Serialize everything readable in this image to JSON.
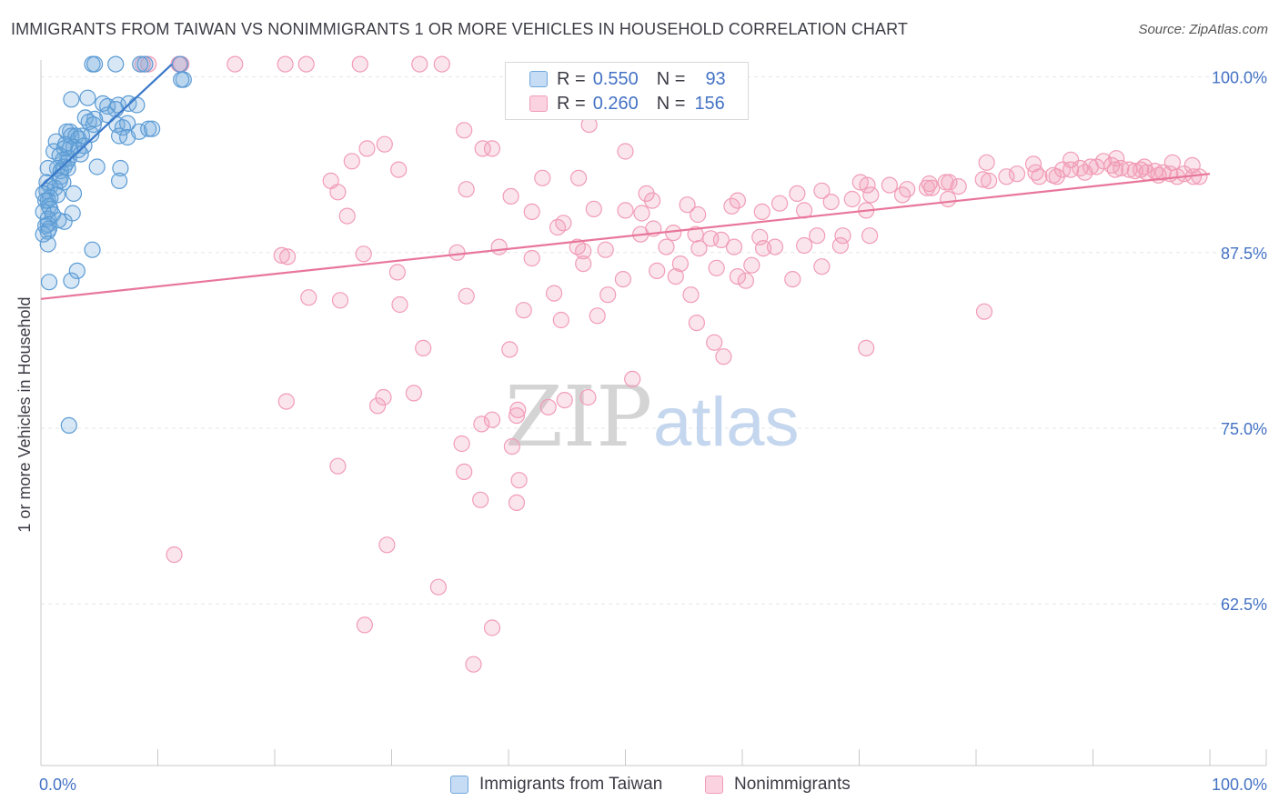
{
  "header": {
    "title": "IMMIGRANTS FROM TAIWAN VS NONIMMIGRANTS 1 OR MORE VEHICLES IN HOUSEHOLD CORRELATION CHART",
    "source": "Source: ZipAtlas.com"
  },
  "watermark": {
    "zip": "ZIP",
    "atlas": "atlas"
  },
  "legend": {
    "rows": [
      {
        "r_label": "R =",
        "r_value": "0.550",
        "n_label": "N =",
        "n_value": "93",
        "color": "#6fa8dc"
      },
      {
        "r_label": "R =",
        "r_value": "0.260",
        "n_label": "N =",
        "n_value": "156",
        "color": "#f19cb7"
      }
    ]
  },
  "bottom_legend": {
    "items": [
      {
        "label": "Immigrants from Taiwan",
        "color": "#6fa8dc"
      },
      {
        "label": "Nonimmigrants",
        "color": "#f19cb7"
      }
    ]
  },
  "chart_data": {
    "type": "scatter",
    "title": "IMMIGRANTS FROM TAIWAN VS NONIMMIGRANTS 1 OR MORE VEHICLES IN HOUSEHOLD CORRELATION CHART",
    "xlabel": "",
    "ylabel": "1 or more Vehicles in Household",
    "xlim": [
      0,
      100
    ],
    "ylim": [
      51.0,
      101.2
    ],
    "x_tick_labels": [
      "0.0%",
      "100.0%"
    ],
    "y_ticks": [
      {
        "value": 100.0,
        "label": "100.0%"
      },
      {
        "value": 87.5,
        "label": "87.5%"
      },
      {
        "value": 75.0,
        "label": "75.0%"
      },
      {
        "value": 62.5,
        "label": "62.5%"
      }
    ],
    "grid": true,
    "colors": {
      "taiwan": "#6fa8dc",
      "taiwan_line": "#3a78c9",
      "nonimm": "#f19cb7",
      "nonimm_line": "#e8769b"
    },
    "series": [
      {
        "name": "Immigrants from Taiwan",
        "R": 0.55,
        "N": 93,
        "trend": [
          [
            0.0,
            92.2
          ],
          [
            11.2,
            100.9
          ]
        ],
        "points": [
          [
            4.4,
            100.9
          ],
          [
            4.6,
            100.9
          ],
          [
            6.4,
            100.9
          ],
          [
            8.5,
            100.9
          ],
          [
            8.9,
            100.9
          ],
          [
            11.9,
            100.9
          ],
          [
            12.2,
            99.8
          ],
          [
            12.0,
            99.8
          ],
          [
            4.0,
            98.5
          ],
          [
            2.6,
            98.4
          ],
          [
            5.3,
            98.1
          ],
          [
            6.6,
            98.0
          ],
          [
            7.5,
            98.1
          ],
          [
            8.2,
            98.0
          ],
          [
            5.7,
            97.9
          ],
          [
            6.4,
            97.7
          ],
          [
            5.7,
            97.3
          ],
          [
            3.8,
            97.1
          ],
          [
            4.6,
            97.0
          ],
          [
            4.1,
            96.8
          ],
          [
            6.5,
            96.6
          ],
          [
            4.5,
            96.6
          ],
          [
            7.4,
            96.7
          ],
          [
            7.0,
            96.4
          ],
          [
            8.4,
            96.1
          ],
          [
            9.2,
            96.3
          ],
          [
            9.5,
            96.3
          ],
          [
            2.5,
            96.1
          ],
          [
            2.2,
            96.1
          ],
          [
            2.6,
            95.8
          ],
          [
            3.0,
            95.8
          ],
          [
            3.5,
            95.8
          ],
          [
            4.3,
            95.9
          ],
          [
            6.7,
            95.8
          ],
          [
            7.4,
            95.7
          ],
          [
            3.2,
            95.6
          ],
          [
            1.3,
            95.4
          ],
          [
            2.1,
            95.2
          ],
          [
            2.8,
            95.0
          ],
          [
            2.5,
            94.9
          ],
          [
            2.0,
            94.9
          ],
          [
            3.2,
            94.8
          ],
          [
            3.7,
            95.1
          ],
          [
            1.1,
            94.7
          ],
          [
            3.4,
            94.5
          ],
          [
            1.6,
            94.4
          ],
          [
            2.4,
            94.2
          ],
          [
            1.9,
            94.1
          ],
          [
            2.2,
            93.9
          ],
          [
            2.0,
            93.6
          ],
          [
            1.4,
            93.5
          ],
          [
            2.3,
            93.5
          ],
          [
            0.6,
            93.5
          ],
          [
            1.7,
            93.3
          ],
          [
            4.8,
            93.6
          ],
          [
            6.8,
            93.5
          ],
          [
            1.7,
            92.9
          ],
          [
            1.6,
            92.6
          ],
          [
            6.7,
            92.6
          ],
          [
            0.5,
            92.5
          ],
          [
            1.9,
            92.5
          ],
          [
            0.8,
            92.2
          ],
          [
            1.2,
            92.1
          ],
          [
            0.5,
            91.9
          ],
          [
            0.2,
            91.7
          ],
          [
            2.8,
            91.7
          ],
          [
            1.4,
            91.6
          ],
          [
            0.8,
            91.4
          ],
          [
            0.6,
            91.2
          ],
          [
            0.4,
            91.2
          ],
          [
            0.7,
            90.8
          ],
          [
            0.8,
            90.6
          ],
          [
            0.2,
            90.4
          ],
          [
            2.7,
            90.3
          ],
          [
            1.0,
            90.2
          ],
          [
            0.6,
            89.9
          ],
          [
            2.0,
            89.7
          ],
          [
            1.5,
            89.8
          ],
          [
            0.6,
            89.5
          ],
          [
            0.4,
            89.4
          ],
          [
            0.7,
            89.2
          ],
          [
            0.6,
            89.0
          ],
          [
            0.2,
            88.8
          ],
          [
            0.6,
            88.1
          ],
          [
            4.4,
            87.7
          ],
          [
            3.1,
            86.2
          ],
          [
            0.7,
            85.4
          ],
          [
            2.6,
            85.5
          ],
          [
            2.4,
            75.2
          ]
        ]
      },
      {
        "name": "Nonimmigrants",
        "R": 0.26,
        "N": 156,
        "trend": [
          [
            0.0,
            84.2
          ],
          [
            100.0,
            93.1
          ]
        ],
        "points": [
          [
            8.7,
            100.9
          ],
          [
            9.2,
            100.9
          ],
          [
            11.8,
            100.9
          ],
          [
            12.0,
            100.9
          ],
          [
            16.6,
            100.9
          ],
          [
            20.9,
            100.9
          ],
          [
            22.7,
            100.9
          ],
          [
            27.3,
            100.9
          ],
          [
            32.4,
            100.9
          ],
          [
            34.3,
            100.9
          ],
          [
            46.9,
            96.6
          ],
          [
            36.2,
            96.2
          ],
          [
            29.4,
            95.2
          ],
          [
            27.9,
            94.9
          ],
          [
            37.8,
            94.9
          ],
          [
            38.6,
            94.9
          ],
          [
            50.0,
            94.7
          ],
          [
            26.6,
            94.0
          ],
          [
            30.6,
            93.4
          ],
          [
            42.9,
            92.8
          ],
          [
            24.8,
            92.6
          ],
          [
            46.0,
            92.8
          ],
          [
            25.4,
            91.8
          ],
          [
            36.4,
            92.0
          ],
          [
            51.8,
            91.7
          ],
          [
            40.2,
            91.5
          ],
          [
            52.3,
            91.2
          ],
          [
            59.6,
            91.2
          ],
          [
            77.7,
            92.5
          ],
          [
            70.1,
            92.5
          ],
          [
            70.7,
            92.3
          ],
          [
            66.8,
            91.9
          ],
          [
            72.6,
            92.3
          ],
          [
            74.1,
            92.0
          ],
          [
            76.0,
            92.4
          ],
          [
            77.4,
            92.5
          ],
          [
            80.6,
            92.7
          ],
          [
            81.1,
            92.6
          ],
          [
            82.6,
            92.9
          ],
          [
            83.5,
            93.1
          ],
          [
            85.1,
            93.2
          ],
          [
            85.4,
            92.9
          ],
          [
            86.6,
            93.0
          ],
          [
            86.9,
            92.9
          ],
          [
            87.4,
            93.4
          ],
          [
            88.1,
            93.4
          ],
          [
            88.9,
            93.5
          ],
          [
            89.3,
            93.2
          ],
          [
            89.8,
            93.6
          ],
          [
            90.3,
            93.6
          ],
          [
            91.6,
            93.7
          ],
          [
            91.9,
            93.4
          ],
          [
            92.4,
            93.5
          ],
          [
            93.1,
            93.4
          ],
          [
            93.6,
            93.3
          ],
          [
            94.1,
            93.4
          ],
          [
            94.6,
            93.2
          ],
          [
            95.3,
            93.3
          ],
          [
            95.6,
            93.0
          ],
          [
            96.0,
            93.2
          ],
          [
            96.6,
            93.1
          ],
          [
            97.2,
            92.9
          ],
          [
            97.8,
            93.1
          ],
          [
            98.6,
            92.9
          ],
          [
            99.1,
            92.9
          ],
          [
            80.9,
            93.9
          ],
          [
            90.9,
            94.0
          ],
          [
            92.0,
            94.2
          ],
          [
            88.1,
            94.1
          ],
          [
            84.9,
            93.8
          ],
          [
            94.4,
            93.6
          ],
          [
            96.8,
            93.9
          ],
          [
            98.5,
            93.7
          ],
          [
            78.5,
            92.2
          ],
          [
            76.2,
            92.1
          ],
          [
            75.8,
            92.1
          ],
          [
            73.7,
            91.6
          ],
          [
            77.6,
            91.3
          ],
          [
            64.7,
            91.7
          ],
          [
            71.0,
            91.6
          ],
          [
            69.4,
            91.3
          ],
          [
            67.6,
            91.1
          ],
          [
            63.2,
            91.0
          ],
          [
            65.3,
            90.5
          ],
          [
            61.7,
            90.4
          ],
          [
            59.1,
            90.8
          ],
          [
            55.3,
            90.9
          ],
          [
            56.2,
            90.2
          ],
          [
            70.6,
            90.5
          ],
          [
            51.4,
            90.3
          ],
          [
            50.0,
            90.5
          ],
          [
            47.3,
            90.6
          ],
          [
            42.0,
            90.4
          ],
          [
            26.2,
            90.1
          ],
          [
            44.7,
            89.6
          ],
          [
            44.2,
            89.3
          ],
          [
            52.4,
            89.2
          ],
          [
            54.1,
            88.9
          ],
          [
            56.0,
            88.8
          ],
          [
            51.3,
            88.8
          ],
          [
            57.3,
            88.5
          ],
          [
            58.2,
            88.4
          ],
          [
            61.5,
            88.6
          ],
          [
            66.4,
            88.7
          ],
          [
            68.6,
            88.7
          ],
          [
            70.9,
            88.7
          ],
          [
            39.2,
            87.9
          ],
          [
            45.9,
            87.9
          ],
          [
            53.5,
            87.9
          ],
          [
            56.3,
            87.8
          ],
          [
            59.3,
            87.9
          ],
          [
            61.8,
            87.8
          ],
          [
            62.8,
            87.9
          ],
          [
            65.3,
            88.0
          ],
          [
            46.4,
            87.6
          ],
          [
            48.3,
            87.7
          ],
          [
            68.4,
            88.0
          ],
          [
            27.6,
            87.4
          ],
          [
            35.6,
            87.5
          ],
          [
            20.6,
            87.3
          ],
          [
            21.1,
            87.2
          ],
          [
            42.0,
            87.1
          ],
          [
            46.4,
            86.7
          ],
          [
            54.7,
            86.7
          ],
          [
            60.8,
            86.6
          ],
          [
            57.8,
            86.4
          ],
          [
            52.7,
            86.2
          ],
          [
            66.8,
            86.5
          ],
          [
            30.5,
            86.1
          ],
          [
            54.3,
            85.8
          ],
          [
            59.6,
            85.8
          ],
          [
            60.3,
            85.5
          ],
          [
            49.8,
            85.6
          ],
          [
            64.3,
            85.6
          ],
          [
            55.6,
            84.5
          ],
          [
            43.9,
            84.6
          ],
          [
            36.4,
            84.4
          ],
          [
            48.5,
            84.5
          ],
          [
            22.9,
            84.3
          ],
          [
            25.6,
            84.1
          ],
          [
            30.7,
            83.8
          ],
          [
            80.7,
            83.3
          ],
          [
            47.6,
            83.0
          ],
          [
            41.3,
            83.4
          ],
          [
            44.5,
            82.7
          ],
          [
            56.1,
            82.5
          ],
          [
            57.6,
            81.1
          ],
          [
            70.6,
            80.7
          ],
          [
            32.7,
            80.7
          ],
          [
            40.1,
            80.6
          ],
          [
            58.4,
            80.1
          ],
          [
            50.6,
            78.5
          ],
          [
            31.9,
            77.5
          ],
          [
            29.3,
            77.2
          ],
          [
            28.8,
            76.6
          ],
          [
            21.0,
            76.9
          ],
          [
            46.8,
            77.2
          ],
          [
            44.8,
            77.0
          ],
          [
            43.4,
            76.5
          ],
          [
            40.8,
            76.3
          ],
          [
            40.7,
            75.9
          ],
          [
            38.6,
            75.6
          ],
          [
            37.7,
            75.3
          ],
          [
            36.0,
            73.9
          ],
          [
            40.3,
            73.7
          ],
          [
            25.4,
            72.3
          ],
          [
            36.2,
            71.9
          ],
          [
            40.9,
            71.3
          ],
          [
            37.6,
            69.9
          ],
          [
            40.7,
            69.7
          ],
          [
            11.4,
            66.0
          ],
          [
            29.6,
            66.7
          ],
          [
            34.0,
            63.7
          ],
          [
            27.7,
            61.0
          ],
          [
            38.6,
            60.8
          ],
          [
            37.0,
            58.2
          ]
        ]
      }
    ]
  }
}
